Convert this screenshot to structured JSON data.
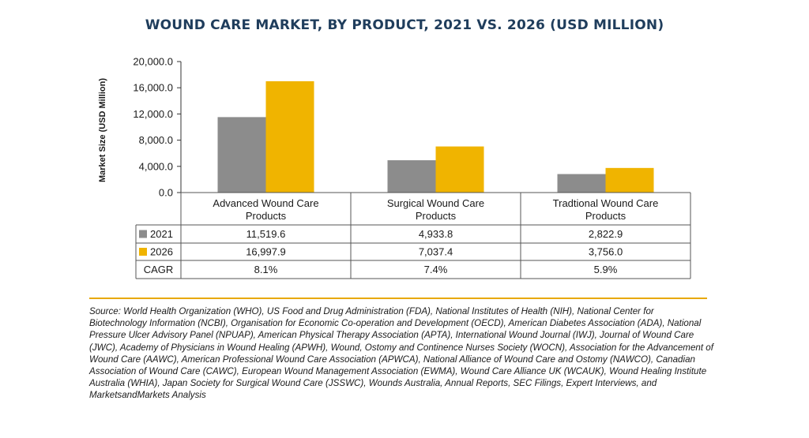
{
  "chart_data": {
    "type": "bar",
    "title": "WOUND CARE MARKET, BY PRODUCT, 2021 VS. 2026 (USD MILLION)",
    "ylabel": "Market Size (USD Million)",
    "ylim": [
      0,
      20000
    ],
    "yticks": [
      "20,000.0",
      "16,000.0",
      "12,000.0",
      "8,000.0",
      "4,000.0",
      "0.0"
    ],
    "ytick_values": [
      20000,
      16000,
      12000,
      8000,
      4000,
      0
    ],
    "categories": [
      [
        "Advanced Wound Care",
        "Products"
      ],
      [
        "Surgical Wound Care",
        "Products"
      ],
      [
        "Tradtional Wound Care",
        "Products"
      ]
    ],
    "series": [
      {
        "name": "2021",
        "color": "#8c8c8c",
        "values": [
          11519.6,
          4933.8,
          2822.9
        ],
        "labels": [
          "11,519.6",
          "4,933.8",
          "2,822.9"
        ]
      },
      {
        "name": "2026",
        "color": "#f0b400",
        "values": [
          16997.9,
          7037.4,
          3756.0
        ],
        "labels": [
          "16,997.9",
          "7,037.4",
          "3,756.0"
        ]
      }
    ],
    "extra_rows": [
      {
        "name": "CAGR",
        "labels": [
          "8.1%",
          "7.4%",
          "5.9%"
        ]
      }
    ],
    "grid": false,
    "legend": "table"
  },
  "source_text": "Source: World Health Organization (WHO), US Food and Drug Administration (FDA), National Institutes of Health (NIH), National Center for Biotechnology Information (NCBI), Organisation for Economic Co-operation and Development (OECD), American Diabetes Association (ADA), National Pressure Ulcer Advisory Panel (NPUAP), American Physical Therapy Association (APTA), International Wound Journal (IWJ), Journal of Wound Care (JWC), Academy of Physicians in Wound Healing (APWH), Wound, Ostomy and Continence Nurses Society (WOCN), Association for the Advancement of Wound Care (AAWC), American Professional Wound Care Association (APWCA), National Alliance of Wound Care and Ostomy (NAWCO), Canadian Association of Wound Care (CAWC), European Wound Management Association (EWMA), Wound Care Alliance UK (WCAUK), Wound Healing Institute Australia (WHIA), Japan Society for Surgical Wound Care (JSSWC), Wounds Australia, Annual Reports, SEC Filings, Expert Interviews, and MarketsandMarkets Analysis"
}
